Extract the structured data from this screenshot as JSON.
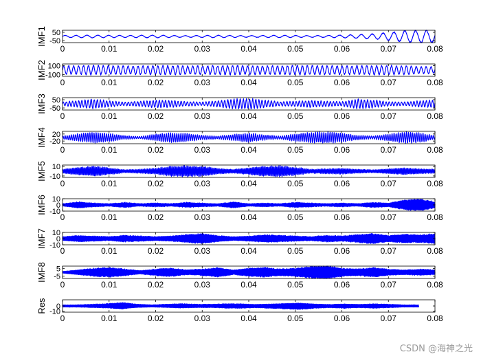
{
  "chart_data": {
    "type": "line",
    "title": "",
    "xlabel": "",
    "xlim": [
      0,
      0.08
    ],
    "xticks": [
      "0",
      "0.01",
      "0.02",
      "0.03",
      "0.04",
      "0.05",
      "0.06",
      "0.07",
      "0.08"
    ],
    "line_color": "#0000ff",
    "grid": false,
    "panels": [
      {
        "ylabel": "IMF1",
        "ylim": [
          -75,
          75
        ],
        "yticks": [
          {
            "v": 50,
            "label": "50"
          },
          {
            "v": -50,
            "label": "-50"
          }
        ],
        "x_extent": 0.08,
        "cycles": 34,
        "amp_profile": [
          12,
          14,
          16,
          14,
          12,
          14,
          16,
          12,
          10,
          12,
          14,
          12,
          10,
          12,
          14,
          12,
          10,
          12,
          16,
          22,
          30,
          45,
          65,
          72,
          70
        ]
      },
      {
        "ylabel": "IMF2",
        "ylim": [
          -140,
          140
        ],
        "yticks": [
          {
            "v": 100,
            "label": "100"
          },
          {
            "v": -100,
            "label": "-100"
          }
        ],
        "x_extent": 0.08,
        "cycles": 75,
        "amp_profile": [
          90,
          95,
          100,
          95,
          90,
          92,
          96,
          100,
          95,
          92,
          96,
          100,
          95,
          90,
          94,
          98,
          100,
          96,
          92,
          95,
          98,
          100,
          94,
          80,
          70
        ]
      },
      {
        "ylabel": "IMF3",
        "ylim": [
          -75,
          75
        ],
        "yticks": [
          {
            "v": 50,
            "label": "50"
          },
          {
            "v": -50,
            "label": "-50"
          }
        ],
        "x_extent": 0.08,
        "cycles": 120,
        "amp_profile": [
          20,
          40,
          55,
          35,
          20,
          30,
          45,
          40,
          25,
          20,
          35,
          55,
          60,
          45,
          25,
          30,
          40,
          30,
          25,
          55,
          45,
          25,
          20,
          35,
          45
        ]
      },
      {
        "ylabel": "IMF4",
        "ylim": [
          -35,
          35
        ],
        "yticks": [
          {
            "v": 20,
            "label": "20"
          },
          {
            "v": -20,
            "label": "-20"
          }
        ],
        "x_extent": 0.08,
        "cycles": 180,
        "amp_profile": [
          8,
          20,
          28,
          22,
          10,
          6,
          18,
          26,
          22,
          12,
          8,
          16,
          24,
          14,
          8,
          20,
          28,
          30,
          24,
          12,
          8,
          18,
          30,
          26,
          10
        ]
      },
      {
        "ylabel": "IMF5",
        "ylim": [
          -13,
          13
        ],
        "yticks": [
          {
            "v": 10,
            "label": "10"
          },
          {
            "v": -10,
            "label": "-10"
          }
        ],
        "x_extent": 0.08,
        "cycles": 300,
        "amp_profile": [
          4,
          8,
          10,
          7,
          3,
          4,
          6,
          10,
          11,
          10,
          6,
          4,
          7,
          10,
          11,
          8,
          4,
          5,
          6,
          4,
          3,
          5,
          7,
          5,
          4
        ]
      },
      {
        "ylabel": "IMF6",
        "ylim": [
          -10,
          10
        ],
        "yticks": [
          {
            "v": 10,
            "label": "10"
          },
          {
            "v": 0,
            "label": "0"
          },
          {
            "v": -10,
            "label": "-10"
          }
        ],
        "x_extent": 0.08,
        "cycles": 400,
        "amp_profile": [
          2,
          5,
          3,
          2,
          4,
          2,
          3,
          2,
          4,
          3,
          2,
          5,
          2,
          3,
          2,
          4,
          3,
          2,
          3,
          2,
          4,
          3,
          8,
          10,
          5
        ]
      },
      {
        "ylabel": "IMF7",
        "ylim": [
          -10,
          10
        ],
        "yticks": [
          {
            "v": 10,
            "label": "10"
          },
          {
            "v": 0,
            "label": "0"
          },
          {
            "v": -10,
            "label": "-10"
          }
        ],
        "x_extent": 0.08,
        "cycles": 520,
        "amp_profile": [
          3,
          5,
          4,
          3,
          5,
          4,
          3,
          4,
          6,
          8,
          5,
          3,
          4,
          6,
          5,
          4,
          3,
          5,
          4,
          6,
          8,
          5,
          7,
          6,
          8
        ]
      },
      {
        "ylabel": "IMF8",
        "ylim": [
          -8,
          8
        ],
        "yticks": [
          {
            "v": 5,
            "label": "5"
          },
          {
            "v": -5,
            "label": "-5"
          }
        ],
        "x_extent": 0.08,
        "cycles": 650,
        "amp_profile": [
          1,
          3,
          5,
          6,
          4,
          2,
          4,
          5,
          3,
          4,
          6,
          3,
          5,
          6,
          4,
          5,
          7,
          8,
          5,
          4,
          6,
          4,
          3,
          4,
          3
        ]
      },
      {
        "ylabel": "Res",
        "ylim": [
          -12,
          12
        ],
        "yticks": [
          {
            "v": 0,
            "label": "0"
          },
          {
            "v": -10,
            "label": "-10"
          }
        ],
        "x_extent": 0.0765,
        "cycles": 800,
        "amp_profile": [
          2,
          2,
          3,
          4,
          6,
          3,
          2,
          3,
          4,
          3,
          3,
          4,
          4,
          3,
          4,
          5,
          6,
          4,
          3,
          4,
          3,
          4,
          3,
          2,
          2
        ]
      }
    ]
  },
  "watermark": "CSDN @海神之光"
}
